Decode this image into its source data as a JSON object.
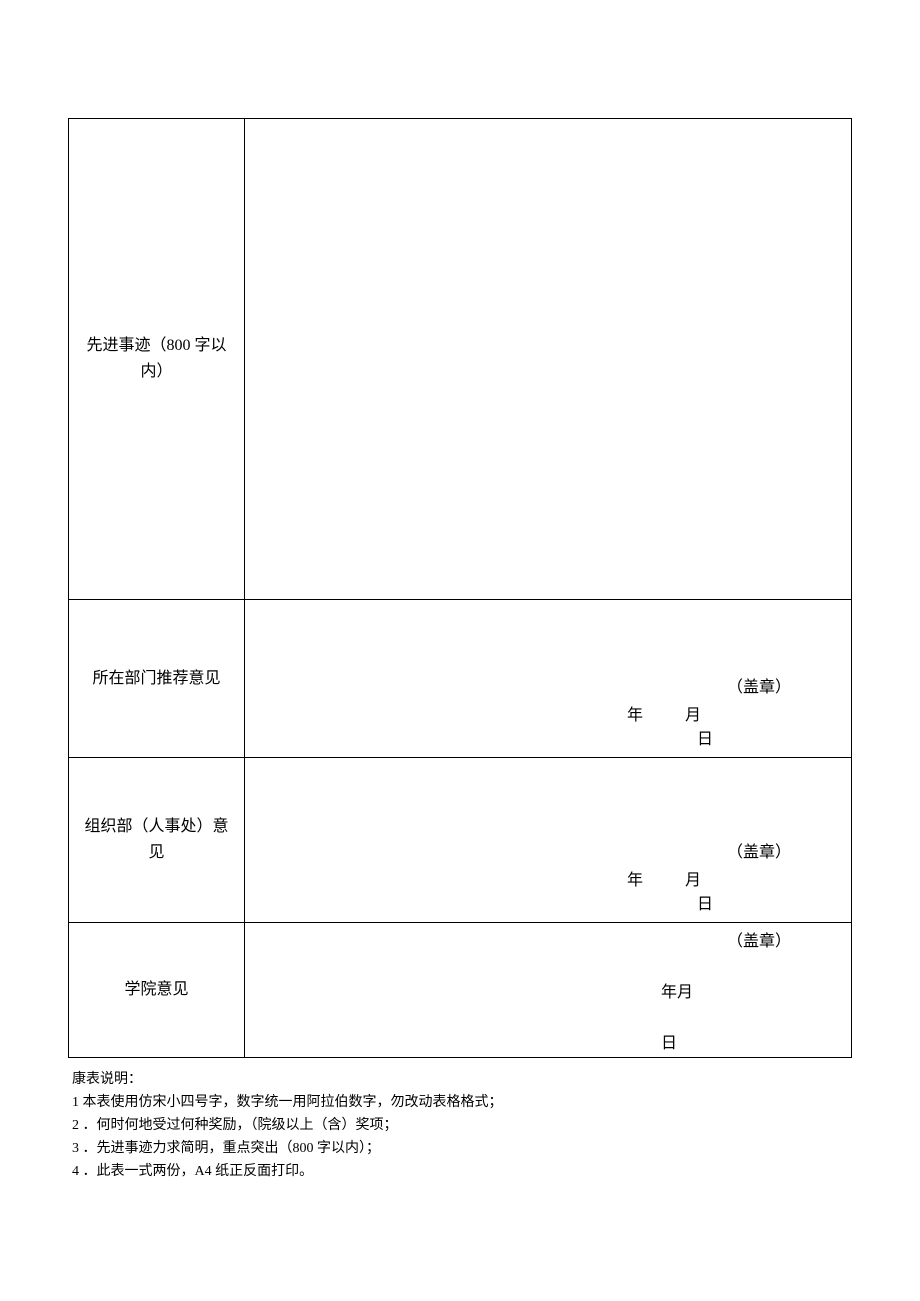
{
  "table": {
    "rows": {
      "deeds": {
        "label": "先进事迹（800 字以内）"
      },
      "dept": {
        "label": "所在部门推荐意见",
        "seal": "（盖章）",
        "year": "年",
        "month": "月",
        "day": "日"
      },
      "org": {
        "label": "组织部（人事处）意见",
        "seal": "（盖章）",
        "year": "年",
        "month": "月",
        "day": "日"
      },
      "college": {
        "label": "学院意见",
        "seal": "（盖章）",
        "year_month": "年月",
        "day": "日"
      }
    }
  },
  "notes": {
    "title": "康表说明：",
    "items": [
      "1 本表使用仿宋小四号字，数字统一用阿拉伯数字，勿改动表格格式；",
      "2 ．何时何地受过何种奖励，（院级以上（含）奖项；",
      "3 ．先进事迹力求简明，重点突出（800 字以内）；",
      "4 ．此表一式两份，A4 纸正反面打印。"
    ]
  },
  "style": {
    "border_color": "#000000",
    "background_color": "#ffffff",
    "font_family": "FangSong",
    "body_fontsize": 16,
    "notes_fontsize": 14,
    "label_col_width": 176
  }
}
